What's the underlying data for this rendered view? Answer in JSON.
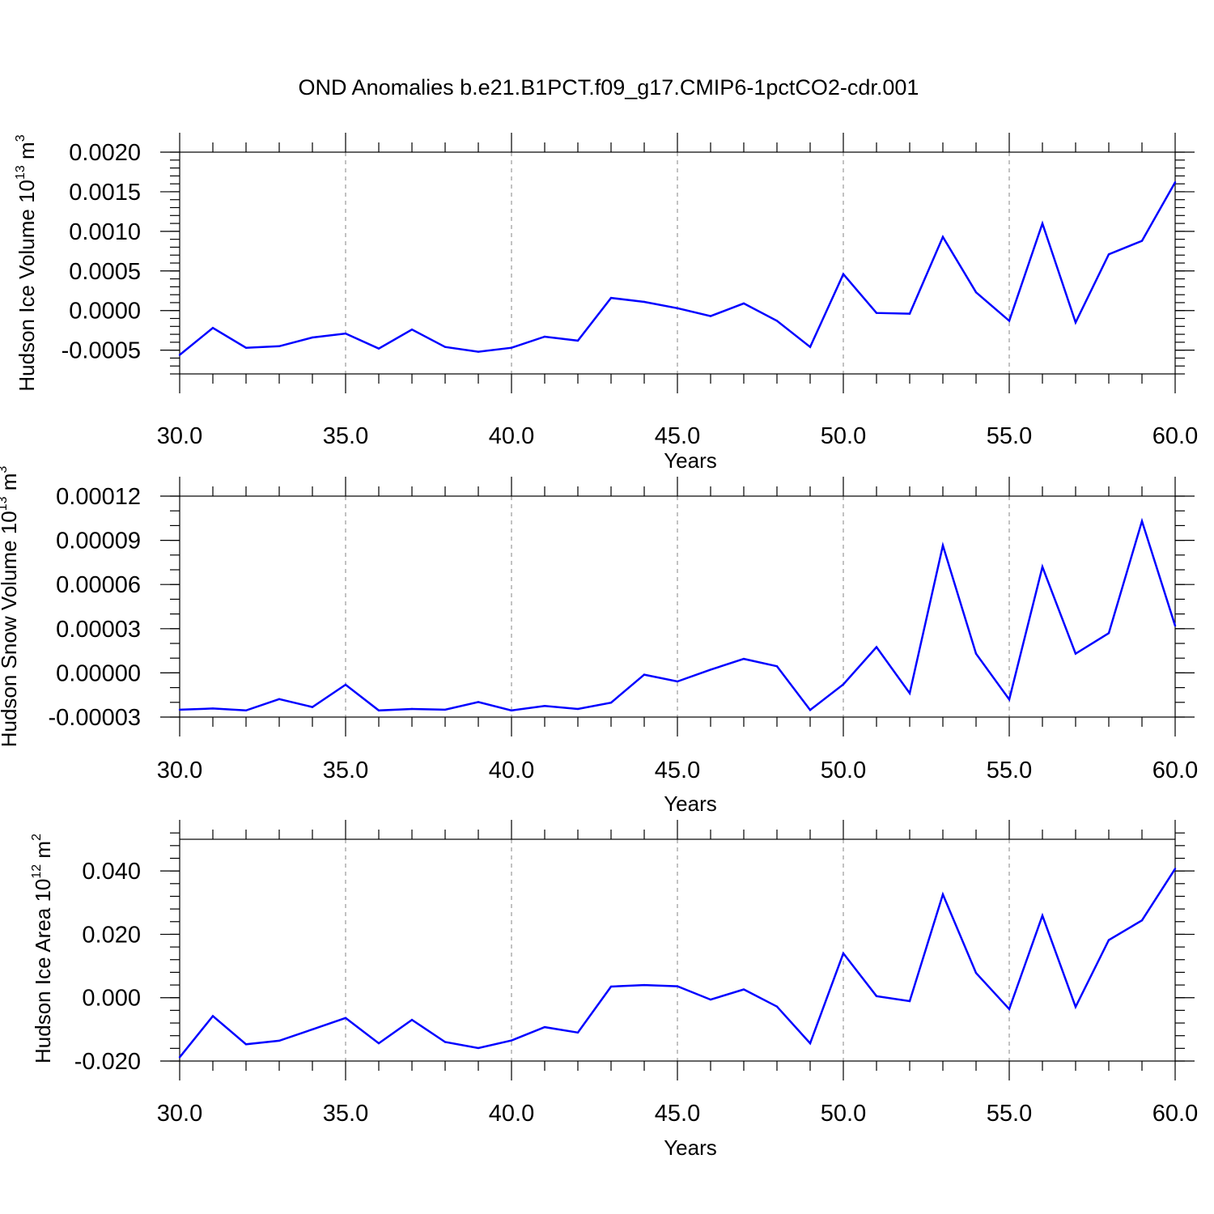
{
  "title": "OND Anomalies b.e21.B1PCT.f09_g17.CMIP6-1pctCO2-cdr.001",
  "colors": {
    "line": "#0000ff",
    "axis": "#000000",
    "grid": "#999999"
  },
  "chart_data": [
    {
      "type": "line",
      "xlabel": "Years",
      "ylabel": {
        "text": "Hudson Ice Volume 10",
        "exp": "13",
        "unit": " m",
        "unit_exp": "3"
      },
      "xlim": [
        30,
        60
      ],
      "ylim": [
        -0.0008,
        0.002
      ],
      "xticks": [
        30,
        35,
        40,
        45,
        50,
        55,
        60
      ],
      "xtick_labels": [
        "30.0",
        "35.0",
        "40.0",
        "45.0",
        "50.0",
        "55.0",
        "60.0"
      ],
      "yticks": [
        -0.0005,
        0.0,
        0.0005,
        0.001,
        0.0015,
        0.002
      ],
      "ytick_labels": [
        "-0.0005",
        "0.0000",
        "0.0005",
        "0.0010",
        "0.0015",
        "0.0020"
      ],
      "grid": "vertical dashed at major x ticks",
      "x": [
        30,
        31,
        32,
        33,
        34,
        35,
        36,
        37,
        38,
        39,
        40,
        41,
        42,
        43,
        44,
        45,
        46,
        47,
        48,
        49,
        50,
        51,
        52,
        53,
        54,
        55,
        56,
        57,
        58,
        59,
        60
      ],
      "y": [
        -0.00056,
        -0.00022,
        -0.00047,
        -0.00045,
        -0.00034,
        -0.00029,
        -0.00048,
        -0.00024,
        -0.00046,
        -0.00052,
        -0.00047,
        -0.00033,
        -0.00038,
        0.00016,
        0.00011,
        3e-05,
        -7e-05,
        9e-05,
        -0.00013,
        -0.00046,
        0.00046,
        -3e-05,
        -4e-05,
        0.00093,
        0.00023,
        -0.00013,
        0.0011,
        -0.00015,
        0.00071,
        0.00088,
        0.00162
      ]
    },
    {
      "type": "line",
      "xlabel": "Years",
      "ylabel": {
        "text": "Hudson Snow Volume 10",
        "exp": "13",
        "unit": " m",
        "unit_exp": "3"
      },
      "xlim": [
        30,
        60
      ],
      "ylim": [
        -3e-05,
        0.00012
      ],
      "xticks": [
        30,
        35,
        40,
        45,
        50,
        55,
        60
      ],
      "xtick_labels": [
        "30.0",
        "35.0",
        "40.0",
        "45.0",
        "50.0",
        "55.0",
        "60.0"
      ],
      "yticks": [
        -3e-05,
        0.0,
        3e-05,
        6e-05,
        9e-05,
        0.00012
      ],
      "ytick_labels": [
        "-0.00003",
        "0.00000",
        "0.00003",
        "0.00006",
        "0.00009",
        "0.00012"
      ],
      "grid": "vertical dashed at major x ticks",
      "x": [
        30,
        31,
        32,
        33,
        34,
        35,
        36,
        37,
        38,
        39,
        40,
        41,
        42,
        43,
        44,
        45,
        46,
        47,
        48,
        49,
        50,
        51,
        52,
        53,
        54,
        55,
        56,
        57,
        58,
        59,
        60
      ],
      "y": [
        -2.5e-05,
        -2.42e-05,
        -2.55e-05,
        -1.78e-05,
        -2.32e-05,
        -8e-06,
        -2.55e-05,
        -2.45e-05,
        -2.5e-05,
        -1.98e-05,
        -2.55e-05,
        -2.25e-05,
        -2.45e-05,
        -2.02e-05,
        -1.2e-06,
        -5.8e-06,
        2.2e-06,
        9.5e-06,
        4.5e-06,
        -2.52e-05,
        -7.8e-06,
        1.75e-05,
        -1.38e-05,
        8.65e-05,
        1.3e-05,
        -1.8e-05,
        7.2e-05,
        1.3e-05,
        2.7e-05,
        0.000103,
        3.2e-05
      ]
    },
    {
      "type": "line",
      "xlabel": "Years",
      "ylabel": {
        "text": "Hudson Ice Area 10",
        "exp": "12",
        "unit": " m",
        "unit_exp": "2"
      },
      "xlim": [
        30,
        60
      ],
      "ylim": [
        -0.02,
        0.05
      ],
      "xticks": [
        30,
        35,
        40,
        45,
        50,
        55,
        60
      ],
      "xtick_labels": [
        "30.0",
        "35.0",
        "40.0",
        "45.0",
        "50.0",
        "55.0",
        "60.0"
      ],
      "yticks": [
        -0.02,
        0.0,
        0.02,
        0.04
      ],
      "ytick_labels": [
        "-0.020",
        "0.000",
        "0.020",
        "0.040"
      ],
      "grid": "vertical dashed at major x ticks",
      "x": [
        30,
        31,
        32,
        33,
        34,
        35,
        36,
        37,
        38,
        39,
        40,
        41,
        42,
        43,
        44,
        45,
        46,
        47,
        48,
        49,
        50,
        51,
        52,
        53,
        54,
        55,
        56,
        57,
        58,
        59,
        60
      ],
      "y": [
        -0.0188,
        -0.0058,
        -0.0147,
        -0.0136,
        -0.01,
        -0.0064,
        -0.0144,
        -0.007,
        -0.014,
        -0.0159,
        -0.0135,
        -0.0093,
        -0.011,
        0.0035,
        0.004,
        0.0036,
        -0.0006,
        0.0026,
        -0.0028,
        -0.0144,
        0.014,
        0.0005,
        -0.0011,
        0.0326,
        0.0078,
        -0.0036,
        0.0259,
        -0.0029,
        0.0182,
        0.0244,
        0.0407
      ]
    }
  ]
}
